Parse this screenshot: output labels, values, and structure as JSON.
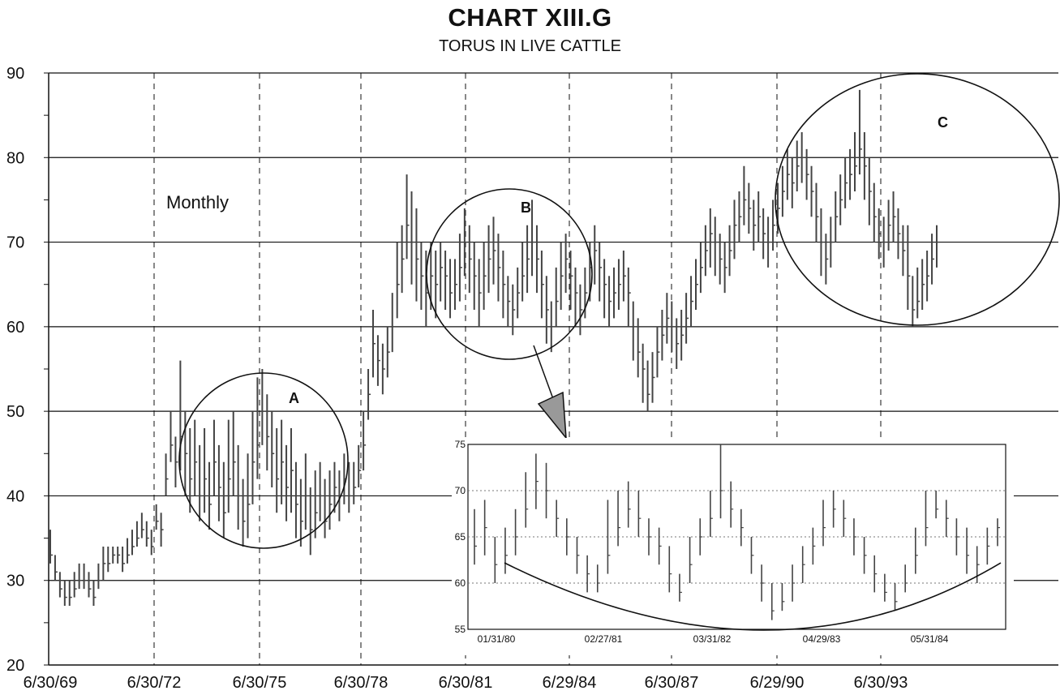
{
  "chart_data": {
    "type": "bar",
    "title": "CHART XIII.G",
    "subtitle": "TORUS IN LIVE CATTLE",
    "annotation": "Monthly",
    "ylim": [
      20,
      90
    ],
    "y_ticks": [
      20,
      30,
      40,
      50,
      60,
      70,
      80,
      90
    ],
    "x_ticks": [
      "6/30/69",
      "6/30/72",
      "6/30/75",
      "6/30/78",
      "6/30/81",
      "6/29/84",
      "6/30/87",
      "6/29/90",
      "6/30/93"
    ],
    "grid": "horizontal solid at every 10; vertical dashed at each x tick",
    "circles": [
      {
        "label": "A",
        "x_from": "1972",
        "x_to": "1977",
        "y_from": 34,
        "y_to": 55
      },
      {
        "label": "B",
        "x_from": "1980",
        "x_to": "1985",
        "y_from": 56,
        "y_to": 76
      },
      {
        "label": "C",
        "x_from": "1989",
        "x_to": "1995",
        "y_from": 60,
        "y_to": 90
      }
    ],
    "series": [
      {
        "values": [
          [
            33,
            36,
            32
          ],
          [
            31,
            33,
            30
          ],
          [
            29,
            31,
            28
          ],
          [
            28,
            30,
            27
          ],
          [
            28,
            30,
            27
          ],
          [
            29,
            31,
            28
          ],
          [
            30,
            32,
            29
          ],
          [
            30,
            32,
            29
          ],
          [
            29,
            31,
            28
          ],
          [
            28,
            30,
            27
          ],
          [
            30,
            32,
            29
          ],
          [
            32,
            34,
            30
          ],
          [
            32,
            34,
            31
          ],
          [
            33,
            34,
            32
          ],
          [
            33,
            34,
            32
          ],
          [
            32,
            34,
            31
          ],
          [
            33,
            35,
            32
          ],
          [
            34,
            36,
            33
          ],
          [
            35,
            37,
            34
          ],
          [
            36,
            38,
            35
          ],
          [
            35,
            37,
            34
          ],
          [
            34,
            36,
            33
          ],
          [
            37,
            39,
            36
          ],
          [
            36,
            38,
            34
          ],
          [
            42,
            45,
            40
          ],
          [
            46,
            50,
            44
          ],
          [
            44,
            47,
            41
          ],
          [
            47,
            56,
            43
          ],
          [
            45,
            50,
            40
          ],
          [
            42,
            48,
            38
          ],
          [
            44,
            49,
            40
          ],
          [
            40,
            46,
            37
          ],
          [
            42,
            48,
            38
          ],
          [
            39,
            44,
            36
          ],
          [
            44,
            49,
            40
          ],
          [
            41,
            46,
            37
          ],
          [
            38,
            44,
            35
          ],
          [
            42,
            49,
            38
          ],
          [
            44,
            50,
            40
          ],
          [
            40,
            46,
            36
          ],
          [
            37,
            42,
            34
          ],
          [
            39,
            45,
            35
          ],
          [
            44,
            50,
            39
          ],
          [
            46,
            54,
            42
          ],
          [
            50,
            55,
            46
          ],
          [
            47,
            52,
            43
          ],
          [
            45,
            50,
            41
          ],
          [
            42,
            48,
            38
          ],
          [
            44,
            49,
            39
          ],
          [
            41,
            46,
            37
          ],
          [
            43,
            48,
            38
          ],
          [
            39,
            44,
            35
          ],
          [
            37,
            42,
            34
          ],
          [
            40,
            45,
            36
          ],
          [
            36,
            41,
            33
          ],
          [
            38,
            43,
            35
          ],
          [
            40,
            44,
            37
          ],
          [
            37,
            42,
            35
          ],
          [
            39,
            43,
            36
          ],
          [
            41,
            44,
            38
          ],
          [
            40,
            43,
            37
          ],
          [
            42,
            45,
            39
          ],
          [
            40,
            44,
            38
          ],
          [
            41,
            44,
            39
          ],
          [
            43,
            46,
            41
          ],
          [
            46,
            50,
            43
          ],
          [
            52,
            55,
            49
          ],
          [
            58,
            62,
            54
          ],
          [
            56,
            59,
            53
          ],
          [
            55,
            58,
            52
          ],
          [
            57,
            60,
            54
          ],
          [
            60,
            64,
            57
          ],
          [
            65,
            70,
            61
          ],
          [
            68,
            72,
            64
          ],
          [
            72,
            78,
            68
          ],
          [
            70,
            76,
            65
          ],
          [
            68,
            74,
            63
          ],
          [
            66,
            70,
            62
          ],
          [
            64,
            69,
            60
          ],
          [
            66,
            70,
            62
          ],
          [
            65,
            69,
            61
          ],
          [
            67,
            70,
            63
          ],
          [
            66,
            69,
            62
          ],
          [
            64,
            68,
            61
          ],
          [
            65,
            68,
            62
          ],
          [
            67,
            71,
            63
          ],
          [
            70,
            74,
            66
          ],
          [
            68,
            72,
            64
          ],
          [
            66,
            70,
            62
          ],
          [
            64,
            68,
            60
          ],
          [
            66,
            70,
            62
          ],
          [
            68,
            72,
            64
          ],
          [
            69,
            73,
            65
          ],
          [
            67,
            71,
            63
          ],
          [
            65,
            69,
            61
          ],
          [
            63,
            66,
            60
          ],
          [
            62,
            65,
            59
          ],
          [
            64,
            67,
            61
          ],
          [
            66,
            70,
            63
          ],
          [
            68,
            72,
            64
          ],
          [
            70,
            75,
            66
          ],
          [
            68,
            72,
            64
          ],
          [
            65,
            69,
            61
          ],
          [
            62,
            66,
            58
          ],
          [
            60,
            63,
            57
          ],
          [
            63,
            67,
            60
          ],
          [
            66,
            70,
            62
          ],
          [
            68,
            71,
            64
          ],
          [
            66,
            69,
            62
          ],
          [
            64,
            67,
            60
          ],
          [
            62,
            65,
            59
          ],
          [
            64,
            67,
            61
          ],
          [
            67,
            70,
            63
          ],
          [
            69,
            72,
            65
          ],
          [
            67,
            70,
            63
          ],
          [
            65,
            68,
            61
          ],
          [
            63,
            66,
            60
          ],
          [
            64,
            67,
            61
          ],
          [
            65,
            68,
            62
          ],
          [
            66,
            69,
            63
          ],
          [
            64,
            67,
            60
          ],
          [
            60,
            63,
            56
          ],
          [
            57,
            61,
            54
          ],
          [
            55,
            58,
            51
          ],
          [
            52,
            56,
            50
          ],
          [
            54,
            57,
            51
          ],
          [
            57,
            60,
            54
          ],
          [
            59,
            62,
            56
          ],
          [
            61,
            64,
            58
          ],
          [
            60,
            63,
            57
          ],
          [
            58,
            61,
            55
          ],
          [
            59,
            62,
            56
          ],
          [
            61,
            64,
            58
          ],
          [
            63,
            66,
            60
          ],
          [
            65,
            68,
            62
          ],
          [
            67,
            70,
            64
          ],
          [
            69,
            72,
            66
          ],
          [
            71,
            74,
            67
          ],
          [
            70,
            73,
            66
          ],
          [
            68,
            71,
            65
          ],
          [
            67,
            70,
            64
          ],
          [
            69,
            72,
            66
          ],
          [
            72,
            75,
            68
          ],
          [
            73,
            76,
            70
          ],
          [
            75,
            79,
            72
          ],
          [
            74,
            77,
            71
          ],
          [
            72,
            75,
            69
          ],
          [
            73,
            76,
            70
          ],
          [
            71,
            74,
            68
          ],
          [
            70,
            73,
            67
          ],
          [
            72,
            75,
            69
          ],
          [
            74,
            77,
            71
          ],
          [
            76,
            79,
            73
          ],
          [
            78,
            81,
            75
          ],
          [
            77,
            80,
            74
          ],
          [
            79,
            82,
            76
          ],
          [
            80,
            83,
            77
          ],
          [
            78,
            81,
            75
          ],
          [
            76,
            79,
            73
          ],
          [
            73,
            77,
            70
          ],
          [
            70,
            74,
            66
          ],
          [
            68,
            71,
            65
          ],
          [
            70,
            73,
            67
          ],
          [
            73,
            76,
            70
          ],
          [
            75,
            78,
            72
          ],
          [
            77,
            80,
            74
          ],
          [
            78,
            81,
            75
          ],
          [
            79,
            83,
            76
          ],
          [
            81,
            88,
            78
          ],
          [
            79,
            83,
            75
          ],
          [
            76,
            80,
            72
          ],
          [
            73,
            77,
            70
          ],
          [
            71,
            74,
            68
          ],
          [
            70,
            73,
            67
          ],
          [
            72,
            75,
            69
          ],
          [
            73,
            76,
            70
          ],
          [
            71,
            74,
            68
          ],
          [
            69,
            72,
            66
          ],
          [
            66,
            72,
            62
          ],
          [
            62,
            66,
            60
          ],
          [
            63,
            67,
            61
          ],
          [
            65,
            68,
            62
          ],
          [
            66,
            69,
            63
          ],
          [
            68,
            71,
            65
          ],
          [
            70,
            72,
            67
          ]
        ]
      }
    ],
    "inset": {
      "ylim": [
        55,
        75
      ],
      "y_ticks": [
        55,
        60,
        65,
        70,
        75
      ],
      "x_ticks": [
        "01/31/80",
        "02/27/81",
        "03/31/82",
        "04/29/83",
        "05/31/84"
      ],
      "values": [
        [
          64,
          68,
          62
        ],
        [
          66,
          69,
          63
        ],
        [
          62,
          65,
          60
        ],
        [
          63,
          66,
          61
        ],
        [
          65,
          68,
          63
        ],
        [
          68,
          72,
          66
        ],
        [
          71,
          74,
          68
        ],
        [
          70,
          73,
          67
        ],
        [
          67,
          69,
          65
        ],
        [
          65,
          67,
          63
        ],
        [
          63,
          65,
          61
        ],
        [
          61,
          63,
          59
        ],
        [
          60,
          62,
          59
        ],
        [
          63,
          69,
          61
        ],
        [
          66,
          70,
          64
        ],
        [
          68,
          71,
          66
        ],
        [
          67,
          70,
          65
        ],
        [
          65,
          67,
          63
        ],
        [
          64,
          66,
          62
        ],
        [
          61,
          64,
          59
        ],
        [
          59,
          61,
          58
        ],
        [
          62,
          65,
          60
        ],
        [
          65,
          67,
          63
        ],
        [
          67,
          70,
          65
        ],
        [
          70,
          75,
          67
        ],
        [
          68,
          71,
          66
        ],
        [
          66,
          68,
          64
        ],
        [
          63,
          65,
          61
        ],
        [
          60,
          62,
          58
        ],
        [
          57,
          60,
          56
        ],
        [
          58,
          60,
          57
        ],
        [
          60,
          62,
          58
        ],
        [
          62,
          64,
          60
        ],
        [
          64,
          66,
          62
        ],
        [
          66,
          69,
          64
        ],
        [
          68,
          70,
          66
        ],
        [
          67,
          69,
          65
        ],
        [
          65,
          67,
          63
        ],
        [
          63,
          65,
          61
        ],
        [
          61,
          63,
          59
        ],
        [
          59,
          61,
          58
        ],
        [
          58,
          60,
          57
        ],
        [
          60,
          62,
          59
        ],
        [
          63,
          66,
          61
        ],
        [
          66,
          70,
          64
        ],
        [
          68,
          70,
          67
        ],
        [
          67,
          69,
          65
        ],
        [
          65,
          67,
          63
        ],
        [
          63,
          66,
          61
        ],
        [
          62,
          64,
          60
        ],
        [
          64,
          66,
          62
        ],
        [
          66,
          67,
          64
        ]
      ]
    }
  }
}
